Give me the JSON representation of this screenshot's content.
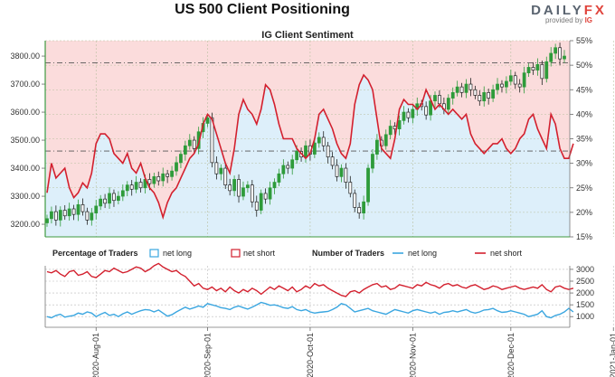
{
  "header": {
    "title": "US 500 Client Positioning",
    "logo_word_a": "DAILY",
    "logo_word_b": "FX",
    "logo_sub_a": "provided by",
    "logo_sub_b": "IG"
  },
  "chart_data": [
    {
      "type": "candlestick-with-sentiment",
      "title": "IG Client Sentiment",
      "y_left_ticks": [
        "3800.00",
        "3700.00",
        "3600.00",
        "3500.00",
        "3400.00",
        "3300.00",
        "3200.00"
      ],
      "y_left_values": [
        3800,
        3700,
        3600,
        3500,
        3400,
        3300,
        3200
      ],
      "y_left_range": [
        3155,
        3855
      ],
      "y_right_ticks": [
        "55%",
        "50%",
        "45%",
        "40%",
        "35%",
        "30%",
        "25%",
        "20%",
        "15%"
      ],
      "y_right_values": [
        55,
        50,
        45,
        40,
        35,
        30,
        25,
        20,
        15
      ],
      "y_right_range": [
        15,
        55
      ],
      "reference_lines_pct": [
        50.5,
        32.5
      ],
      "price_close": [
        3220,
        3245,
        3215,
        3250,
        3230,
        3255,
        3235,
        3270,
        3245,
        3215,
        3240,
        3265,
        3290,
        3275,
        3310,
        3285,
        3300,
        3320,
        3340,
        3325,
        3350,
        3330,
        3360,
        3345,
        3370,
        3355,
        3380,
        3370,
        3390,
        3420,
        3450,
        3480,
        3500,
        3470,
        3530,
        3560,
        3580,
        3420,
        3380,
        3400,
        3340,
        3320,
        3360,
        3300,
        3330,
        3340,
        3280,
        3250,
        3310,
        3290,
        3330,
        3350,
        3380,
        3410,
        3400,
        3430,
        3460,
        3440,
        3480,
        3450,
        3490,
        3510,
        3480,
        3440,
        3410,
        3370,
        3400,
        3350,
        3310,
        3260,
        3240,
        3280,
        3400,
        3450,
        3500,
        3480,
        3520,
        3550,
        3540,
        3570,
        3600,
        3580,
        3610,
        3630,
        3620,
        3590,
        3640,
        3660,
        3630,
        3610,
        3650,
        3670,
        3690,
        3670,
        3700,
        3680,
        3660,
        3640,
        3670,
        3650,
        3680,
        3700,
        3690,
        3710,
        3730,
        3700,
        3690,
        3740,
        3760,
        3750,
        3770,
        3720,
        3780,
        3810,
        3830,
        3790,
        3800
      ],
      "net_long_pct": [
        24,
        30,
        27,
        28,
        29,
        25,
        23,
        24,
        26,
        25,
        28,
        34,
        36,
        36,
        35,
        32,
        31,
        30,
        32,
        29,
        28,
        30,
        27,
        25,
        24,
        22,
        19,
        22,
        24,
        25,
        27,
        29,
        31,
        32,
        34,
        38,
        40,
        39,
        36,
        33,
        30,
        28,
        33,
        40,
        43,
        41,
        40,
        38,
        41,
        46,
        45,
        42,
        38,
        35,
        35,
        35,
        33,
        32,
        31,
        32,
        35,
        40,
        41,
        39,
        37,
        34,
        32,
        31,
        34,
        42,
        46,
        48,
        47,
        45,
        39,
        33,
        32,
        31,
        35,
        41,
        43,
        42,
        42,
        41,
        42,
        45,
        43,
        41,
        42,
        41,
        40,
        41,
        40,
        39,
        40,
        36,
        34,
        33,
        32,
        33,
        34,
        34,
        35,
        33,
        32,
        33,
        35,
        36,
        39,
        40,
        37,
        35,
        33,
        40,
        38,
        33,
        31,
        31,
        34
      ],
      "x_tick_labels": [
        "2020-Aug-01",
        "2020-Sep-01",
        "2020-Oct-01",
        "2020-Nov-01",
        "2020-Dec-01",
        "2021-Jan-01"
      ],
      "x_tick_index": [
        11,
        36,
        59,
        82,
        104,
        127
      ]
    },
    {
      "type": "line",
      "title": "Number of Traders",
      "y_ticks": [
        "3000",
        "2500",
        "2000",
        "1500",
        "1000"
      ],
      "y_values": [
        3000,
        2500,
        2000,
        1500,
        1000
      ],
      "y_range": [
        550,
        3150
      ],
      "series": [
        {
          "name": "net long",
          "color": "#3aa6e0",
          "values": [
            1000,
            950,
            1050,
            1100,
            980,
            1020,
            1050,
            1150,
            1100,
            1200,
            1150,
            1000,
            1100,
            1180,
            1050,
            1100,
            1000,
            1120,
            1200,
            1100,
            1180,
            1250,
            1300,
            1280,
            1200,
            1280,
            1150,
            1020,
            1080,
            1200,
            1300,
            1400,
            1320,
            1380,
            1450,
            1400,
            1550,
            1500,
            1450,
            1380,
            1350,
            1300,
            1400,
            1450,
            1380,
            1320,
            1400,
            1500,
            1600,
            1550,
            1480,
            1500,
            1450,
            1380,
            1350,
            1420,
            1300,
            1250,
            1300,
            1200,
            1150,
            1180,
            1200,
            1220,
            1300,
            1400,
            1550,
            1500,
            1350,
            1200,
            1250,
            1300,
            1350,
            1250,
            1200,
            1150,
            1100,
            1200,
            1300,
            1250,
            1200,
            1150,
            1250,
            1300,
            1250,
            1200,
            1150,
            1200,
            1100,
            1180,
            1200,
            1250,
            1200,
            1250,
            1300,
            1200,
            1150,
            1200,
            1280,
            1300,
            1350,
            1250,
            1180,
            1200,
            1250,
            1200,
            1150,
            1100,
            1000,
            1050,
            1100,
            1250,
            1000,
            950,
            1050,
            1100,
            1200,
            1350,
            1200
          ]
        },
        {
          "name": "net short",
          "color": "#d3202e",
          "values": [
            2900,
            2850,
            2950,
            2800,
            2700,
            2900,
            2950,
            2750,
            2800,
            2900,
            2700,
            2650,
            2800,
            2950,
            2900,
            3050,
            2950,
            2850,
            2900,
            3000,
            3100,
            3050,
            2900,
            3000,
            3150,
            3250,
            3100,
            3000,
            2900,
            2950,
            2800,
            2700,
            2500,
            2300,
            2400,
            2200,
            2150,
            2250,
            2100,
            2200,
            2050,
            2250,
            2100,
            2000,
            2150,
            2050,
            2200,
            2100,
            1950,
            2100,
            2250,
            2150,
            2300,
            2200,
            2100,
            2250,
            2050,
            2150,
            2300,
            2200,
            2400,
            2300,
            2350,
            2200,
            2100,
            2000,
            1900,
            1850,
            2050,
            2100,
            2000,
            2150,
            2250,
            2350,
            2400,
            2250,
            2300,
            2150,
            2200,
            2350,
            2300,
            2250,
            2200,
            2350,
            2300,
            2450,
            2350,
            2300,
            2200,
            2350,
            2400,
            2300,
            2350,
            2250,
            2200,
            2300,
            2350,
            2250,
            2150,
            2200,
            2300,
            2250,
            2150,
            2200,
            2250,
            2300,
            2200,
            2150,
            2200,
            2250,
            2200,
            2350,
            2150,
            2050,
            2250,
            2300,
            2200,
            2150,
            2200
          ]
        }
      ]
    }
  ],
  "legend": {
    "pct_head": "Percentage of Traders",
    "num_head": "Number of Traders",
    "net_long": "net long",
    "net_short": "net short"
  },
  "colors": {
    "red": "#d3202e",
    "blue": "#3aa6e0",
    "red_fill": "#fbdcdc",
    "blue_fill": "#ddeffa",
    "candle_up": "#2e9b3a",
    "candle_down": "#222222"
  }
}
